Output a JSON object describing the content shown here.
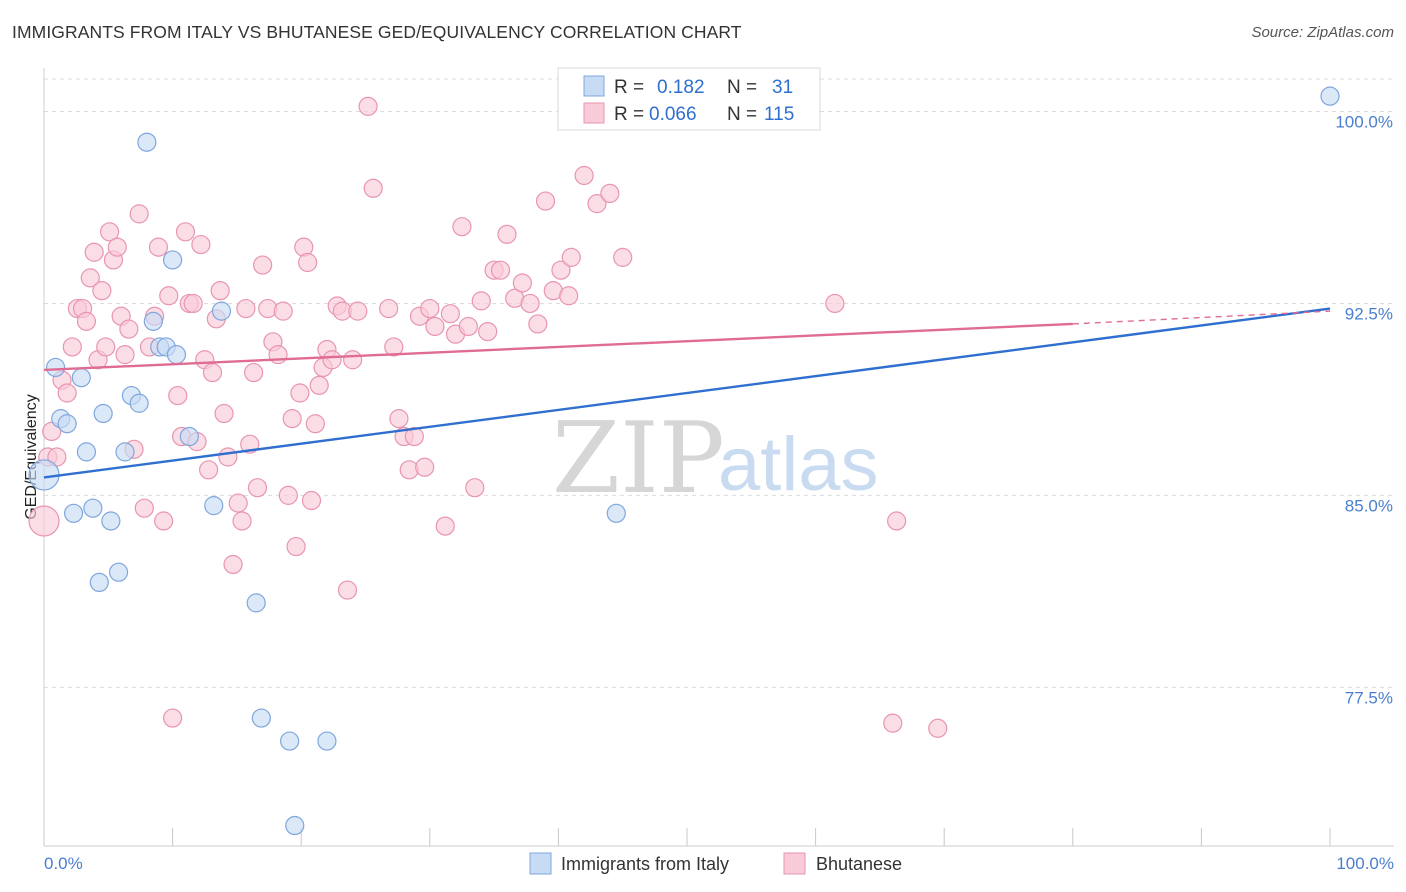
{
  "header": {
    "title": "IMMIGRANTS FROM ITALY VS BHUTANESE GED/EQUIVALENCY CORRELATION CHART",
    "source": "Source: ZipAtlas.com"
  },
  "legend": {
    "r_label": "R =",
    "n_label": "N =",
    "italy": {
      "r": "0.182",
      "n": "31"
    },
    "bhutanese": {
      "r": "0.066",
      "n": "115"
    }
  },
  "watermark": {
    "zip": "ZIP",
    "atlas": "atlas"
  },
  "chart_data": {
    "type": "scatter",
    "title": "IMMIGRANTS FROM ITALY VS BHUTANESE GED/EQUIVALENCY CORRELATION CHART",
    "xlabel": "",
    "ylabel": "GED/Equivalency",
    "xlim": [
      0,
      100
    ],
    "ylim": [
      71.3,
      101.7
    ],
    "x_tick_labels": [
      "0.0%",
      "100.0%"
    ],
    "y_ticks": [
      77.5,
      85.0,
      92.5,
      100.0
    ],
    "y_tick_labels": [
      "77.5%",
      "85.0%",
      "92.5%",
      "100.0%"
    ],
    "grid": true,
    "colors": {
      "italy_fill": "#c7dbf5",
      "italy_stroke": "#7fa6dd",
      "italy_line": "#2f6fcf",
      "bhutanese_fill": "#f9cbd9",
      "bhutanese_stroke": "#e895b1",
      "bhutanese_line": "#e06b93",
      "tick_text": "#4a7fcf"
    },
    "series": [
      {
        "name": "Immigrants from Italy",
        "trend": {
          "x0": 0,
          "y0": 85.7,
          "x1": 100,
          "y1": 92.3
        },
        "points": [
          [
            0.0,
            85.8
          ],
          [
            0.9,
            90.0
          ],
          [
            1.3,
            88.0
          ],
          [
            1.8,
            87.8
          ],
          [
            2.3,
            84.3
          ],
          [
            2.9,
            89.6
          ],
          [
            3.3,
            86.7
          ],
          [
            3.8,
            84.5
          ],
          [
            4.3,
            81.6
          ],
          [
            4.6,
            88.2
          ],
          [
            5.2,
            84.0
          ],
          [
            5.8,
            82.0
          ],
          [
            6.3,
            86.7
          ],
          [
            6.8,
            88.9
          ],
          [
            7.4,
            88.6
          ],
          [
            8.0,
            98.8
          ],
          [
            8.5,
            91.8
          ],
          [
            9.0,
            90.8
          ],
          [
            9.5,
            90.8
          ],
          [
            10.0,
            94.2
          ],
          [
            10.3,
            90.5
          ],
          [
            11.3,
            87.3
          ],
          [
            13.2,
            84.6
          ],
          [
            13.8,
            92.2
          ],
          [
            16.5,
            80.8
          ],
          [
            16.9,
            76.3
          ],
          [
            19.1,
            75.4
          ],
          [
            19.5,
            72.1
          ],
          [
            22.0,
            75.4
          ],
          [
            44.5,
            84.3
          ],
          [
            100.0,
            100.6
          ]
        ]
      },
      {
        "name": "Bhutanese",
        "trend": {
          "x0": 0,
          "y0": 89.9,
          "x1": 80,
          "y1": 91.7,
          "x_ext": 100,
          "y_ext": 92.2
        },
        "points": [
          [
            0.0,
            84.0
          ],
          [
            0.3,
            86.5
          ],
          [
            0.6,
            87.5
          ],
          [
            1.0,
            86.5
          ],
          [
            1.4,
            89.5
          ],
          [
            1.8,
            89.0
          ],
          [
            2.2,
            90.8
          ],
          [
            2.6,
            92.3
          ],
          [
            3.0,
            92.3
          ],
          [
            3.3,
            91.8
          ],
          [
            3.6,
            93.5
          ],
          [
            3.9,
            94.5
          ],
          [
            4.2,
            90.3
          ],
          [
            4.5,
            93.0
          ],
          [
            4.8,
            90.8
          ],
          [
            5.1,
            95.3
          ],
          [
            5.4,
            94.2
          ],
          [
            5.7,
            94.7
          ],
          [
            6.0,
            92.0
          ],
          [
            6.3,
            90.5
          ],
          [
            6.6,
            91.5
          ],
          [
            7.0,
            86.8
          ],
          [
            7.4,
            96.0
          ],
          [
            7.8,
            84.5
          ],
          [
            8.2,
            90.8
          ],
          [
            8.6,
            92.0
          ],
          [
            8.9,
            94.7
          ],
          [
            9.3,
            84.0
          ],
          [
            9.7,
            92.8
          ],
          [
            10.0,
            76.3
          ],
          [
            10.4,
            88.9
          ],
          [
            10.7,
            87.3
          ],
          [
            11.0,
            95.3
          ],
          [
            11.3,
            92.5
          ],
          [
            11.6,
            92.5
          ],
          [
            11.9,
            87.1
          ],
          [
            12.2,
            94.8
          ],
          [
            12.5,
            90.3
          ],
          [
            12.8,
            86.0
          ],
          [
            13.1,
            89.8
          ],
          [
            13.4,
            91.9
          ],
          [
            13.7,
            93.0
          ],
          [
            14.0,
            88.2
          ],
          [
            14.3,
            86.5
          ],
          [
            14.7,
            82.3
          ],
          [
            15.1,
            84.7
          ],
          [
            15.4,
            84.0
          ],
          [
            15.7,
            92.3
          ],
          [
            16.0,
            87.0
          ],
          [
            16.3,
            89.8
          ],
          [
            16.6,
            85.3
          ],
          [
            17.0,
            94.0
          ],
          [
            17.4,
            92.3
          ],
          [
            17.8,
            91.0
          ],
          [
            18.2,
            90.5
          ],
          [
            18.6,
            92.2
          ],
          [
            19.0,
            85.0
          ],
          [
            19.3,
            88.0
          ],
          [
            19.6,
            83.0
          ],
          [
            19.9,
            89.0
          ],
          [
            20.2,
            94.7
          ],
          [
            20.5,
            94.1
          ],
          [
            20.8,
            84.8
          ],
          [
            21.1,
            87.8
          ],
          [
            21.4,
            89.3
          ],
          [
            21.7,
            90.0
          ],
          [
            22.0,
            90.7
          ],
          [
            22.4,
            90.3
          ],
          [
            22.8,
            92.4
          ],
          [
            23.2,
            92.2
          ],
          [
            23.6,
            81.3
          ],
          [
            24.0,
            90.3
          ],
          [
            24.4,
            92.2
          ],
          [
            25.2,
            100.2
          ],
          [
            25.6,
            97.0
          ],
          [
            26.8,
            92.3
          ],
          [
            27.2,
            90.8
          ],
          [
            27.6,
            88.0
          ],
          [
            28.0,
            87.3
          ],
          [
            28.4,
            86.0
          ],
          [
            28.8,
            87.3
          ],
          [
            29.2,
            92.0
          ],
          [
            29.6,
            86.1
          ],
          [
            30.0,
            92.3
          ],
          [
            30.4,
            91.6
          ],
          [
            31.2,
            83.8
          ],
          [
            31.6,
            92.1
          ],
          [
            32.0,
            91.3
          ],
          [
            32.5,
            95.5
          ],
          [
            33.0,
            91.6
          ],
          [
            33.5,
            85.3
          ],
          [
            34.0,
            92.6
          ],
          [
            34.5,
            91.4
          ],
          [
            35.0,
            93.8
          ],
          [
            35.5,
            93.8
          ],
          [
            36.0,
            95.2
          ],
          [
            36.6,
            92.7
          ],
          [
            37.2,
            93.3
          ],
          [
            37.8,
            92.5
          ],
          [
            38.4,
            91.7
          ],
          [
            39.0,
            96.5
          ],
          [
            39.6,
            93.0
          ],
          [
            40.2,
            93.8
          ],
          [
            41.0,
            94.3
          ],
          [
            42.0,
            97.5
          ],
          [
            43.0,
            96.4
          ],
          [
            44.0,
            96.8
          ],
          [
            45.0,
            94.3
          ],
          [
            61.5,
            92.5
          ],
          [
            66.0,
            76.1
          ],
          [
            66.3,
            84.0
          ],
          [
            69.5,
            75.9
          ],
          [
            40.8,
            92.8
          ]
        ]
      }
    ]
  },
  "bottom_legend": {
    "italy": "Immigrants from Italy",
    "bhutanese": "Bhutanese"
  }
}
